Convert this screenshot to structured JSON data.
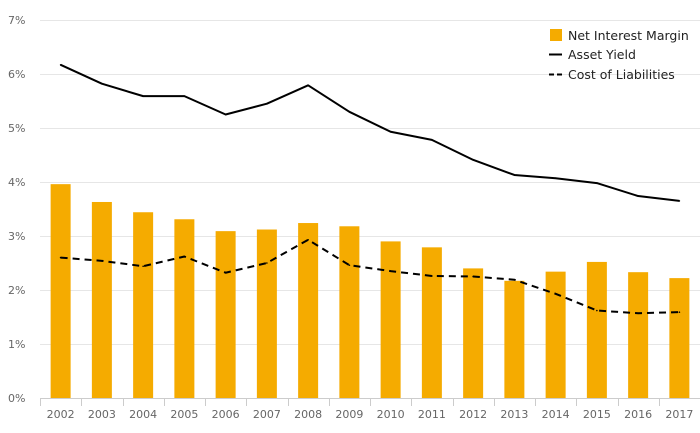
{
  "chart_data": {
    "type": "bar",
    "title": "",
    "xlabel": "",
    "ylabel": "",
    "categories": [
      "2002",
      "2003",
      "2004",
      "2005",
      "2006",
      "2007",
      "2008",
      "2009",
      "2010",
      "2011",
      "2012",
      "2013",
      "2014",
      "2015",
      "2016",
      "2017"
    ],
    "ylim": [
      0,
      7
    ],
    "y_ticks": [
      "0%",
      "1%",
      "2%",
      "3%",
      "4%",
      "5%",
      "6%",
      "7%"
    ],
    "grid": true,
    "legend_position": "top-right",
    "series": [
      {
        "name": "Net Interest Margin",
        "type": "bar",
        "color": "#f5ab00",
        "values": [
          3.96,
          3.63,
          3.44,
          3.31,
          3.09,
          3.12,
          3.24,
          3.18,
          2.9,
          2.79,
          2.4,
          2.17,
          2.34,
          2.52,
          2.33,
          2.22
        ]
      },
      {
        "name": "Asset Yield",
        "type": "line",
        "color": "#000000",
        "dash": "solid",
        "values": [
          6.17,
          5.82,
          5.59,
          5.59,
          5.25,
          5.45,
          5.79,
          5.3,
          4.93,
          4.78,
          4.41,
          4.13,
          4.07,
          3.98,
          3.74,
          3.65
        ]
      },
      {
        "name": "Cost of Liabilities",
        "type": "line",
        "color": "#000000",
        "dash": "dashed",
        "values": [
          2.6,
          2.54,
          2.44,
          2.62,
          2.32,
          2.5,
          2.93,
          2.46,
          2.35,
          2.26,
          2.25,
          2.19,
          1.93,
          1.62,
          1.57,
          1.59
        ]
      }
    ]
  }
}
